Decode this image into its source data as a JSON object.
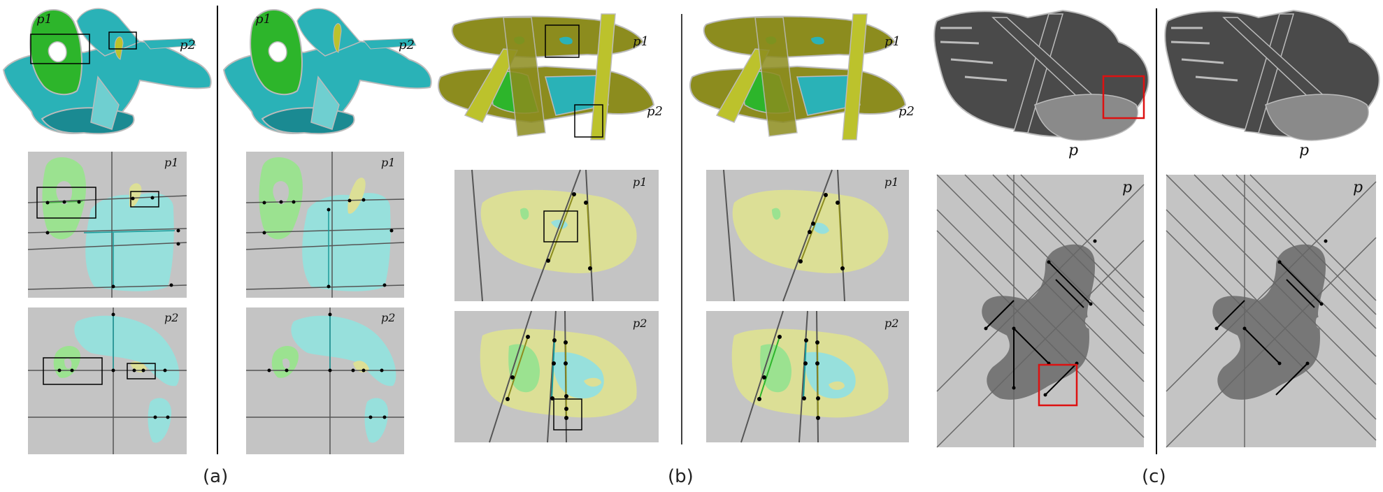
{
  "figure": {
    "captions": [
      "(a)",
      "(b)",
      "(c)"
    ],
    "labels": {
      "p1": "p1",
      "p2": "p2",
      "p": "p"
    }
  },
  "colors": {
    "panel_gray": "#c4c4c4",
    "light_green": "#9be290",
    "light_cyan": "#97e0dc",
    "light_yellow": "#dcdf96",
    "dark_gray_shape": "#777777",
    "model_green": "#2db52b",
    "model_cyan": "#2ab2b7",
    "model_olive": "#8c8c1e",
    "model_yellow": "#bcc22c",
    "model_dark": "#4a4a4a",
    "highlight_red": "#dd1111"
  }
}
